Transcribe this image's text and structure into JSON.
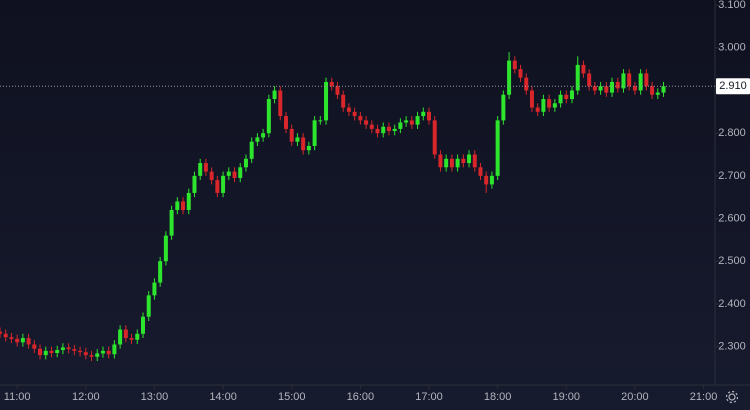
{
  "chart_data": {
    "type": "candlestick",
    "up_color": "#2ee52e",
    "down_color": "#d8262b",
    "x": [
      645,
      650,
      655,
      660,
      665,
      670,
      675,
      680,
      685,
      690,
      695,
      700,
      705,
      710,
      715,
      720,
      725,
      730,
      735,
      740,
      745,
      750,
      755,
      760,
      765,
      770,
      775,
      780,
      785,
      790,
      795,
      800,
      805,
      810,
      815,
      820,
      825,
      830,
      835,
      840,
      845,
      850,
      855,
      860,
      865,
      870,
      875,
      880,
      885,
      890,
      895,
      900,
      905,
      910,
      915,
      920,
      925,
      930,
      935,
      940,
      945,
      950,
      955,
      960,
      965,
      970,
      975,
      980,
      985,
      990,
      995,
      1000,
      1005,
      1010,
      1015,
      1020,
      1025,
      1030,
      1035,
      1040,
      1045,
      1050,
      1055,
      1060,
      1065,
      1070,
      1075,
      1080,
      1085,
      1090,
      1095,
      1100,
      1105,
      1110,
      1115,
      1120,
      1125,
      1130,
      1135,
      1140,
      1145,
      1150,
      1155,
      1160,
      1165,
      1170,
      1175,
      1180,
      1185,
      1190,
      1195,
      1200,
      1205,
      1210,
      1215,
      1220,
      1225
    ],
    "open": [
      2.335,
      2.33,
      2.322,
      2.318,
      2.31,
      2.32,
      2.305,
      2.295,
      2.28,
      2.29,
      2.285,
      2.292,
      2.298,
      2.294,
      2.29,
      2.287,
      2.28,
      2.276,
      2.284,
      2.29,
      2.282,
      2.305,
      2.34,
      2.32,
      2.316,
      2.33,
      2.37,
      2.42,
      2.45,
      2.5,
      2.56,
      2.62,
      2.64,
      2.62,
      2.66,
      2.7,
      2.73,
      2.71,
      2.69,
      2.66,
      2.7,
      2.71,
      2.695,
      2.72,
      2.74,
      2.78,
      2.79,
      2.8,
      2.88,
      2.9,
      2.84,
      2.81,
      2.78,
      2.79,
      2.76,
      2.77,
      2.83,
      2.83,
      2.92,
      2.91,
      2.89,
      2.86,
      2.85,
      2.84,
      2.83,
      2.82,
      2.81,
      2.8,
      2.815,
      2.805,
      2.81,
      2.825,
      2.83,
      2.82,
      2.84,
      2.85,
      2.83,
      2.75,
      2.72,
      2.74,
      2.72,
      2.74,
      2.73,
      2.75,
      2.72,
      2.7,
      2.68,
      2.7,
      2.83,
      2.89,
      2.97,
      2.95,
      2.93,
      2.9,
      2.86,
      2.85,
      2.88,
      2.86,
      2.87,
      2.89,
      2.88,
      2.9,
      2.96,
      2.94,
      2.91,
      2.9,
      2.91,
      2.895,
      2.92,
      2.905,
      2.94,
      2.91,
      2.9,
      2.94,
      2.91,
      2.89,
      2.895
    ],
    "high": [
      2.345,
      2.34,
      2.332,
      2.328,
      2.33,
      2.33,
      2.315,
      2.305,
      2.3,
      2.3,
      2.302,
      2.308,
      2.308,
      2.304,
      2.3,
      2.297,
      2.29,
      2.294,
      2.3,
      2.3,
      2.315,
      2.35,
      2.35,
      2.33,
      2.34,
      2.38,
      2.43,
      2.46,
      2.51,
      2.57,
      2.63,
      2.65,
      2.65,
      2.67,
      2.71,
      2.74,
      2.74,
      2.72,
      2.7,
      2.71,
      2.72,
      2.72,
      2.73,
      2.75,
      2.79,
      2.8,
      2.81,
      2.89,
      2.91,
      2.91,
      2.85,
      2.82,
      2.8,
      2.8,
      2.78,
      2.84,
      2.84,
      2.93,
      2.93,
      2.92,
      2.9,
      2.87,
      2.86,
      2.85,
      2.84,
      2.83,
      2.82,
      2.825,
      2.825,
      2.82,
      2.835,
      2.84,
      2.84,
      2.85,
      2.86,
      2.86,
      2.84,
      2.76,
      2.75,
      2.75,
      2.75,
      2.75,
      2.76,
      2.76,
      2.73,
      2.71,
      2.71,
      2.84,
      2.9,
      2.99,
      2.98,
      2.96,
      2.94,
      2.91,
      2.87,
      2.89,
      2.89,
      2.88,
      2.9,
      2.9,
      2.91,
      2.98,
      2.97,
      2.95,
      2.92,
      2.92,
      2.92,
      2.93,
      2.93,
      2.95,
      2.95,
      2.92,
      2.95,
      2.95,
      2.92,
      2.905,
      2.92
    ],
    "low": [
      2.32,
      2.312,
      2.308,
      2.3,
      2.3,
      2.295,
      2.285,
      2.27,
      2.27,
      2.275,
      2.275,
      2.282,
      2.284,
      2.28,
      2.277,
      2.27,
      2.266,
      2.266,
      2.274,
      2.272,
      2.272,
      2.295,
      2.31,
      2.306,
      2.306,
      2.32,
      2.36,
      2.41,
      2.44,
      2.49,
      2.55,
      2.61,
      2.61,
      2.61,
      2.65,
      2.69,
      2.7,
      2.68,
      2.65,
      2.65,
      2.69,
      2.685,
      2.685,
      2.71,
      2.73,
      2.77,
      2.78,
      2.79,
      2.87,
      2.83,
      2.8,
      2.77,
      2.77,
      2.75,
      2.75,
      2.76,
      2.82,
      2.82,
      2.9,
      2.88,
      2.85,
      2.84,
      2.83,
      2.82,
      2.81,
      2.8,
      2.79,
      2.79,
      2.795,
      2.795,
      2.8,
      2.815,
      2.81,
      2.81,
      2.83,
      2.82,
      2.74,
      2.71,
      2.71,
      2.71,
      2.71,
      2.72,
      2.72,
      2.71,
      2.69,
      2.66,
      2.67,
      2.69,
      2.82,
      2.88,
      2.94,
      2.92,
      2.89,
      2.85,
      2.84,
      2.84,
      2.85,
      2.85,
      2.86,
      2.87,
      2.87,
      2.89,
      2.93,
      2.9,
      2.89,
      2.89,
      2.885,
      2.885,
      2.895,
      2.895,
      2.9,
      2.89,
      2.89,
      2.9,
      2.88,
      2.88,
      2.885
    ],
    "close": [
      2.33,
      2.322,
      2.318,
      2.31,
      2.32,
      2.305,
      2.295,
      2.28,
      2.29,
      2.285,
      2.292,
      2.298,
      2.294,
      2.29,
      2.287,
      2.28,
      2.276,
      2.284,
      2.29,
      2.282,
      2.305,
      2.34,
      2.32,
      2.316,
      2.33,
      2.37,
      2.42,
      2.45,
      2.5,
      2.56,
      2.62,
      2.64,
      2.62,
      2.66,
      2.7,
      2.73,
      2.71,
      2.69,
      2.66,
      2.7,
      2.71,
      2.695,
      2.72,
      2.74,
      2.78,
      2.79,
      2.8,
      2.88,
      2.9,
      2.84,
      2.81,
      2.78,
      2.79,
      2.76,
      2.77,
      2.83,
      2.83,
      2.92,
      2.91,
      2.89,
      2.86,
      2.85,
      2.84,
      2.83,
      2.82,
      2.81,
      2.8,
      2.815,
      2.805,
      2.81,
      2.825,
      2.83,
      2.82,
      2.84,
      2.85,
      2.83,
      2.75,
      2.72,
      2.74,
      2.72,
      2.74,
      2.73,
      2.75,
      2.72,
      2.7,
      2.68,
      2.7,
      2.83,
      2.89,
      2.97,
      2.95,
      2.93,
      2.9,
      2.86,
      2.85,
      2.88,
      2.86,
      2.87,
      2.89,
      2.88,
      2.9,
      2.96,
      2.94,
      2.91,
      2.9,
      2.91,
      2.895,
      2.92,
      2.905,
      2.94,
      2.91,
      2.9,
      2.94,
      2.91,
      2.89,
      2.895,
      2.91
    ],
    "xlim": [
      645,
      1270
    ],
    "xticks": [
      {
        "value": 660,
        "label": "11:00"
      },
      {
        "value": 720,
        "label": "12:00"
      },
      {
        "value": 780,
        "label": "13:00"
      },
      {
        "value": 840,
        "label": "14:00"
      },
      {
        "value": 900,
        "label": "15:00"
      },
      {
        "value": 960,
        "label": "16:00"
      },
      {
        "value": 1020,
        "label": "17:00"
      },
      {
        "value": 1080,
        "label": "18:00"
      },
      {
        "value": 1140,
        "label": "19:00"
      },
      {
        "value": 1200,
        "label": "20:00"
      },
      {
        "value": 1260,
        "label": "21:00"
      }
    ],
    "ylim": [
      2.21,
      3.112
    ],
    "yticks": [
      {
        "value": 2.3,
        "label": "2.300"
      },
      {
        "value": 2.4,
        "label": "2.400"
      },
      {
        "value": 2.5,
        "label": "2.500"
      },
      {
        "value": 2.6,
        "label": "2.600"
      },
      {
        "value": 2.7,
        "label": "2.700"
      },
      {
        "value": 2.8,
        "label": "2.800"
      },
      {
        "value": 2.9,
        "label": "2.900"
      },
      {
        "value": 3.0,
        "label": "3.000"
      },
      {
        "value": 3.1,
        "label": "3.100"
      }
    ],
    "last_price": {
      "value": 2.91,
      "label": "2.910"
    }
  }
}
